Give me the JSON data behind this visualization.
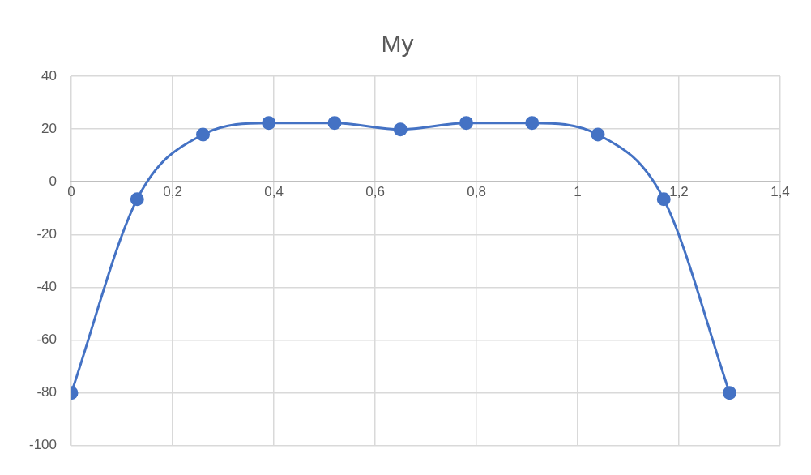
{
  "chart_data": {
    "type": "line",
    "title": "My",
    "x": [
      0,
      0.13,
      0.26,
      0.39,
      0.52,
      0.65,
      0.78,
      0.91,
      1.04,
      1.17,
      1.3
    ],
    "series": [
      {
        "color": "#4472c4",
        "values": [
          -80,
          -6.6,
          17.9,
          22.3,
          22.3,
          19.8,
          22.3,
          22.3,
          17.9,
          -6.6,
          -80
        ]
      }
    ],
    "xlim": [
      0,
      1.4
    ],
    "xticks": [
      0,
      {
        "value": 0.2,
        "label": "0,2"
      },
      {
        "value": 0.4,
        "label": "0,4"
      },
      {
        "value": 0.6,
        "label": "0,6"
      },
      {
        "value": 0.8,
        "label": "0,8"
      },
      1,
      {
        "value": 1.2,
        "label": "1,2"
      },
      {
        "value": 1.4,
        "label": "1,4"
      }
    ],
    "ylim": [
      -100,
      40
    ],
    "yticks": [
      -100,
      -80,
      -60,
      -40,
      -20,
      0,
      20,
      40
    ],
    "grid": true,
    "legend": false,
    "marker": "circle",
    "line_style": "solid"
  }
}
